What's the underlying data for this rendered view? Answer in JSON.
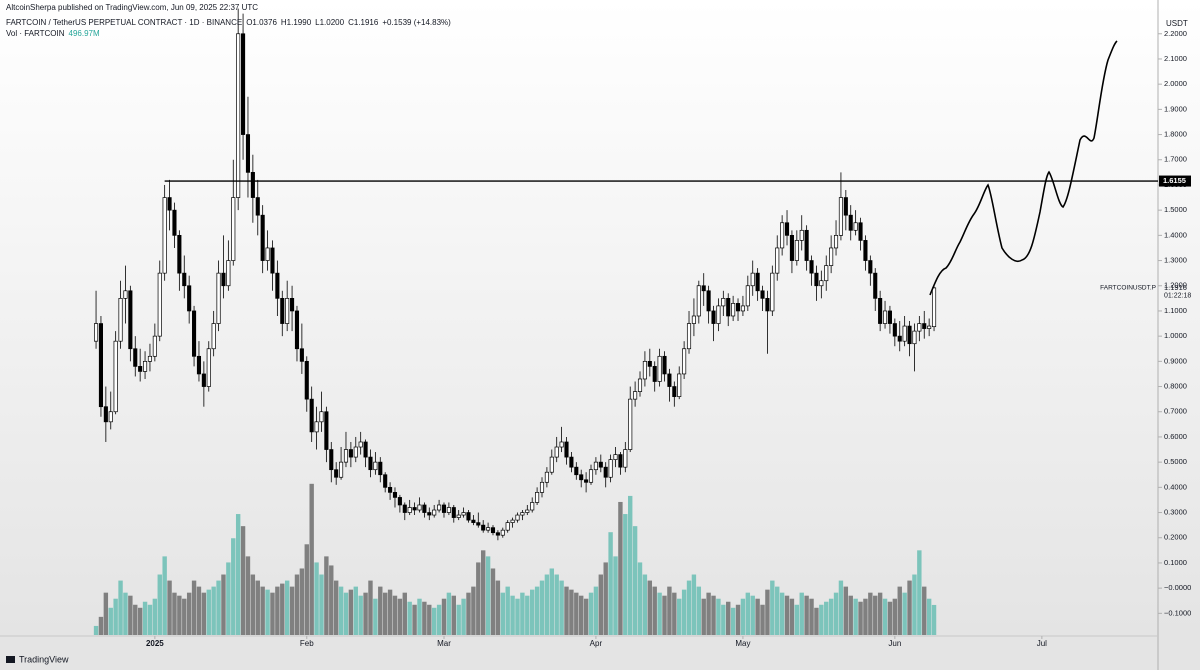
{
  "header": {
    "publisher": "AltcoinSherpa published on TradingView.com, Jun 09, 2025 22:37 UTC",
    "symbol": "FARTCOIN / TetherUS PERPETUAL CONTRACT · 1D · BINANCE",
    "ohlc": [
      "O1.0376",
      "H1.1990",
      "L1.0200",
      "C1.1916",
      "+0.1539 (+14.83%)"
    ],
    "volume_name": "Vol · FARTCOIN",
    "volume_value": "496.97M",
    "brand": "TradingView"
  },
  "chart_data": {
    "type": "candlestick",
    "currency": "USDT",
    "xlim": [
      -19.6,
      216.7
    ],
    "xticks": [
      {
        "value": 12,
        "label": "2025"
      },
      {
        "value": 43,
        "label": "Feb"
      },
      {
        "value": 71,
        "label": "Mar"
      },
      {
        "value": 102,
        "label": "Apr"
      },
      {
        "value": 132,
        "label": "May"
      },
      {
        "value": 163,
        "label": "Jun"
      },
      {
        "value": 193,
        "label": "Jul"
      }
    ],
    "ylim": [
      -0.186,
      2.334
    ],
    "yticks": [
      {
        "value": -0.1,
        "label": "−0.1000"
      },
      {
        "value": 0,
        "label": "−0.0000"
      },
      {
        "value": 0.1,
        "label": "0.1000"
      },
      {
        "value": 0.2,
        "label": "0.2000"
      },
      {
        "value": 0.3,
        "label": "0.3000"
      },
      {
        "value": 0.4,
        "label": "0.4000"
      },
      {
        "value": 0.5,
        "label": "0.5000"
      },
      {
        "value": 0.6,
        "label": "0.6000"
      },
      {
        "value": 0.7,
        "label": "0.7000"
      },
      {
        "value": 0.8,
        "label": "0.8000"
      },
      {
        "value": 0.9,
        "label": "0.9000"
      },
      {
        "value": 1.0,
        "label": "1.0000"
      },
      {
        "value": 1.1,
        "label": "1.1000"
      },
      {
        "value": 1.2,
        "label": "1.2000"
      },
      {
        "value": 1.3,
        "label": "1.3000"
      },
      {
        "value": 1.4,
        "label": "1.4000"
      },
      {
        "value": 1.5,
        "label": "1.5000"
      },
      {
        "value": 1.6,
        "label": "1.6000"
      },
      {
        "value": 1.7,
        "label": "1.7000"
      },
      {
        "value": 1.8,
        "label": "1.8000"
      },
      {
        "value": 1.9,
        "label": "1.9000"
      },
      {
        "value": 2.0,
        "label": "2.0000"
      },
      {
        "value": 2.1,
        "label": "2.1000"
      },
      {
        "value": 2.2,
        "label": "2.2000"
      }
    ],
    "volume_lim": [
      0,
      10500
    ],
    "grid": false,
    "up_color": "#ffffff",
    "down_color": "#000000",
    "vol_up_color": "#7cc4bb",
    "vol_down_color": "#808080",
    "level": {
      "value": 1.6155,
      "label": "1.6155",
      "from_index": 14
    },
    "last_price": {
      "value": 1.1916,
      "label": "1.1916",
      "ticker": "FARTCOINUSDT.P",
      "countdown": "01:22:18"
    },
    "candles": [
      [
        0.98,
        1.18,
        0.95,
        1.05,
        150
      ],
      [
        1.05,
        1.08,
        0.68,
        0.72,
        300
      ],
      [
        0.72,
        0.8,
        0.58,
        0.66,
        700
      ],
      [
        0.66,
        0.78,
        0.63,
        0.7,
        450
      ],
      [
        0.7,
        1.02,
        0.69,
        0.98,
        600
      ],
      [
        0.98,
        1.22,
        0.95,
        1.15,
        900
      ],
      [
        1.15,
        1.28,
        1.05,
        1.18,
        700
      ],
      [
        1.18,
        1.2,
        0.9,
        0.95,
        650
      ],
      [
        0.95,
        1.0,
        0.84,
        0.88,
        500
      ],
      [
        0.88,
        0.95,
        0.82,
        0.86,
        450
      ],
      [
        0.86,
        0.94,
        0.83,
        0.9,
        550
      ],
      [
        0.9,
        0.97,
        0.86,
        0.92,
        500
      ],
      [
        0.92,
        1.05,
        0.9,
        1.0,
        600
      ],
      [
        1.0,
        1.3,
        0.98,
        1.25,
        1000
      ],
      [
        1.25,
        1.6,
        1.22,
        1.55,
        1300
      ],
      [
        1.55,
        1.62,
        1.42,
        1.5,
        900
      ],
      [
        1.5,
        1.53,
        1.35,
        1.4,
        700
      ],
      [
        1.4,
        1.42,
        1.18,
        1.25,
        650
      ],
      [
        1.25,
        1.32,
        1.15,
        1.2,
        600
      ],
      [
        1.2,
        1.24,
        1.05,
        1.1,
        700
      ],
      [
        1.1,
        1.12,
        0.88,
        0.92,
        900
      ],
      [
        0.92,
        0.98,
        0.82,
        0.85,
        800
      ],
      [
        0.85,
        0.9,
        0.72,
        0.8,
        700
      ],
      [
        0.8,
        0.98,
        0.78,
        0.95,
        750
      ],
      [
        0.95,
        1.1,
        0.92,
        1.05,
        800
      ],
      [
        1.05,
        1.3,
        1.02,
        1.25,
        900
      ],
      [
        1.25,
        1.4,
        1.15,
        1.2,
        1000
      ],
      [
        1.2,
        1.38,
        1.18,
        1.3,
        1200
      ],
      [
        1.3,
        1.7,
        1.28,
        1.55,
        1600
      ],
      [
        1.55,
        2.3,
        1.5,
        2.2,
        2000
      ],
      [
        2.2,
        2.28,
        1.7,
        1.8,
        1800
      ],
      [
        1.8,
        1.95,
        1.55,
        1.65,
        1300
      ],
      [
        1.65,
        1.72,
        1.45,
        1.55,
        1000
      ],
      [
        1.55,
        1.62,
        1.4,
        1.48,
        900
      ],
      [
        1.48,
        1.52,
        1.25,
        1.3,
        800
      ],
      [
        1.3,
        1.42,
        1.26,
        1.35,
        750
      ],
      [
        1.35,
        1.38,
        1.18,
        1.25,
        700
      ],
      [
        1.25,
        1.3,
        1.08,
        1.15,
        800
      ],
      [
        1.15,
        1.18,
        1.0,
        1.05,
        850
      ],
      [
        1.05,
        1.22,
        1.02,
        1.15,
        900
      ],
      [
        1.15,
        1.2,
        1.02,
        1.1,
        800
      ],
      [
        1.1,
        1.12,
        0.9,
        0.95,
        1000
      ],
      [
        0.95,
        1.05,
        0.85,
        0.9,
        1100
      ],
      [
        0.9,
        0.92,
        0.7,
        0.75,
        1500
      ],
      [
        0.75,
        0.8,
        0.58,
        0.62,
        2500
      ],
      [
        0.62,
        0.72,
        0.55,
        0.66,
        1200
      ],
      [
        0.66,
        0.78,
        0.62,
        0.7,
        1000
      ],
      [
        0.7,
        0.72,
        0.5,
        0.55,
        1300
      ],
      [
        0.55,
        0.58,
        0.42,
        0.47,
        1150
      ],
      [
        0.47,
        0.5,
        0.41,
        0.44,
        900
      ],
      [
        0.44,
        0.56,
        0.43,
        0.5,
        800
      ],
      [
        0.5,
        0.62,
        0.48,
        0.55,
        700
      ],
      [
        0.55,
        0.58,
        0.48,
        0.52,
        750
      ],
      [
        0.52,
        0.6,
        0.5,
        0.56,
        800
      ],
      [
        0.56,
        0.62,
        0.53,
        0.58,
        650
      ],
      [
        0.58,
        0.59,
        0.48,
        0.52,
        700
      ],
      [
        0.52,
        0.55,
        0.44,
        0.47,
        900
      ],
      [
        0.47,
        0.54,
        0.45,
        0.5,
        600
      ],
      [
        0.5,
        0.52,
        0.42,
        0.45,
        800
      ],
      [
        0.45,
        0.46,
        0.38,
        0.4,
        700
      ],
      [
        0.4,
        0.42,
        0.35,
        0.38,
        750
      ],
      [
        0.38,
        0.4,
        0.32,
        0.36,
        650
      ],
      [
        0.36,
        0.37,
        0.3,
        0.33,
        600
      ],
      [
        0.33,
        0.34,
        0.27,
        0.3,
        700
      ],
      [
        0.3,
        0.35,
        0.29,
        0.32,
        550
      ],
      [
        0.32,
        0.34,
        0.29,
        0.31,
        500
      ],
      [
        0.31,
        0.36,
        0.3,
        0.33,
        600
      ],
      [
        0.33,
        0.34,
        0.28,
        0.3,
        550
      ],
      [
        0.3,
        0.32,
        0.27,
        0.29,
        500
      ],
      [
        0.29,
        0.33,
        0.28,
        0.31,
        450
      ],
      [
        0.31,
        0.35,
        0.3,
        0.33,
        500
      ],
      [
        0.33,
        0.34,
        0.28,
        0.3,
        600
      ],
      [
        0.3,
        0.34,
        0.29,
        0.32,
        700
      ],
      [
        0.32,
        0.33,
        0.26,
        0.28,
        650
      ],
      [
        0.28,
        0.31,
        0.27,
        0.29,
        500
      ],
      [
        0.29,
        0.32,
        0.28,
        0.3,
        600
      ],
      [
        0.3,
        0.31,
        0.26,
        0.27,
        700
      ],
      [
        0.27,
        0.29,
        0.25,
        0.26,
        800
      ],
      [
        0.26,
        0.3,
        0.24,
        0.25,
        1200
      ],
      [
        0.25,
        0.27,
        0.22,
        0.23,
        1400
      ],
      [
        0.23,
        0.26,
        0.22,
        0.24,
        1300
      ],
      [
        0.24,
        0.25,
        0.21,
        0.22,
        1100
      ],
      [
        0.22,
        0.23,
        0.19,
        0.21,
        900
      ],
      [
        0.21,
        0.24,
        0.2,
        0.23,
        700
      ],
      [
        0.23,
        0.27,
        0.22,
        0.26,
        800
      ],
      [
        0.26,
        0.28,
        0.24,
        0.27,
        650
      ],
      [
        0.27,
        0.3,
        0.26,
        0.29,
        600
      ],
      [
        0.29,
        0.31,
        0.27,
        0.3,
        700
      ],
      [
        0.3,
        0.33,
        0.29,
        0.31,
        650
      ],
      [
        0.31,
        0.36,
        0.3,
        0.34,
        750
      ],
      [
        0.34,
        0.4,
        0.33,
        0.38,
        800
      ],
      [
        0.38,
        0.44,
        0.36,
        0.42,
        900
      ],
      [
        0.42,
        0.48,
        0.4,
        0.46,
        1000
      ],
      [
        0.46,
        0.55,
        0.45,
        0.52,
        1100
      ],
      [
        0.52,
        0.6,
        0.5,
        0.56,
        1000
      ],
      [
        0.56,
        0.64,
        0.54,
        0.58,
        900
      ],
      [
        0.58,
        0.6,
        0.49,
        0.52,
        800
      ],
      [
        0.52,
        0.54,
        0.46,
        0.48,
        750
      ],
      [
        0.48,
        0.5,
        0.43,
        0.45,
        700
      ],
      [
        0.45,
        0.47,
        0.4,
        0.43,
        650
      ],
      [
        0.43,
        0.46,
        0.38,
        0.42,
        600
      ],
      [
        0.42,
        0.49,
        0.41,
        0.47,
        700
      ],
      [
        0.47,
        0.52,
        0.45,
        0.5,
        800
      ],
      [
        0.5,
        0.53,
        0.46,
        0.48,
        1000
      ],
      [
        0.48,
        0.5,
        0.4,
        0.44,
        1200
      ],
      [
        0.44,
        0.53,
        0.42,
        0.51,
        1700
      ],
      [
        0.51,
        0.56,
        0.48,
        0.53,
        1300
      ],
      [
        0.53,
        0.54,
        0.45,
        0.48,
        2200
      ],
      [
        0.48,
        0.58,
        0.46,
        0.55,
        2000
      ],
      [
        0.55,
        0.8,
        0.54,
        0.75,
        2300
      ],
      [
        0.75,
        0.82,
        0.72,
        0.78,
        1800
      ],
      [
        0.78,
        0.86,
        0.76,
        0.83,
        1200
      ],
      [
        0.83,
        0.94,
        0.8,
        0.9,
        1000
      ],
      [
        0.9,
        0.95,
        0.84,
        0.88,
        900
      ],
      [
        0.88,
        0.9,
        0.78,
        0.82,
        800
      ],
      [
        0.82,
        0.95,
        0.8,
        0.92,
        700
      ],
      [
        0.92,
        0.94,
        0.82,
        0.85,
        650
      ],
      [
        0.85,
        0.87,
        0.74,
        0.8,
        800
      ],
      [
        0.8,
        0.82,
        0.72,
        0.76,
        700
      ],
      [
        0.76,
        0.88,
        0.75,
        0.85,
        600
      ],
      [
        0.85,
        0.98,
        0.83,
        0.95,
        750
      ],
      [
        0.95,
        1.1,
        0.93,
        1.05,
        900
      ],
      [
        1.05,
        1.15,
        1.0,
        1.08,
        1000
      ],
      [
        1.08,
        1.22,
        1.05,
        1.2,
        800
      ],
      [
        1.2,
        1.25,
        1.12,
        1.18,
        600
      ],
      [
        1.18,
        1.2,
        1.05,
        1.1,
        700
      ],
      [
        1.1,
        1.12,
        0.98,
        1.05,
        650
      ],
      [
        1.05,
        1.15,
        1.02,
        1.12,
        600
      ],
      [
        1.12,
        1.18,
        1.08,
        1.15,
        500
      ],
      [
        1.15,
        1.17,
        1.04,
        1.08,
        550
      ],
      [
        1.08,
        1.16,
        1.06,
        1.13,
        450
      ],
      [
        1.13,
        1.15,
        1.06,
        1.1,
        500
      ],
      [
        1.1,
        1.16,
        1.08,
        1.12,
        600
      ],
      [
        1.12,
        1.24,
        1.1,
        1.2,
        700
      ],
      [
        1.2,
        1.3,
        1.16,
        1.25,
        650
      ],
      [
        1.25,
        1.27,
        1.14,
        1.18,
        600
      ],
      [
        1.18,
        1.2,
        1.1,
        1.15,
        500
      ],
      [
        1.15,
        1.18,
        0.93,
        1.1,
        750
      ],
      [
        1.1,
        1.28,
        1.08,
        1.25,
        900
      ],
      [
        1.25,
        1.4,
        1.22,
        1.35,
        800
      ],
      [
        1.35,
        1.48,
        1.32,
        1.45,
        700
      ],
      [
        1.45,
        1.5,
        1.36,
        1.4,
        650
      ],
      [
        1.4,
        1.42,
        1.25,
        1.3,
        600
      ],
      [
        1.3,
        1.42,
        1.28,
        1.38,
        500
      ],
      [
        1.38,
        1.48,
        1.34,
        1.42,
        700
      ],
      [
        1.42,
        1.44,
        1.26,
        1.3,
        650
      ],
      [
        1.3,
        1.32,
        1.2,
        1.25,
        600
      ],
      [
        1.25,
        1.28,
        1.14,
        1.2,
        450
      ],
      [
        1.2,
        1.26,
        1.15,
        1.22,
        500
      ],
      [
        1.22,
        1.32,
        1.18,
        1.28,
        550
      ],
      [
        1.28,
        1.4,
        1.25,
        1.35,
        600
      ],
      [
        1.35,
        1.46,
        1.32,
        1.4,
        700
      ],
      [
        1.4,
        1.65,
        1.38,
        1.55,
        900
      ],
      [
        1.55,
        1.58,
        1.42,
        1.48,
        800
      ],
      [
        1.48,
        1.52,
        1.38,
        1.42,
        650
      ],
      [
        1.42,
        1.5,
        1.4,
        1.45,
        600
      ],
      [
        1.45,
        1.47,
        1.34,
        1.38,
        550
      ],
      [
        1.38,
        1.4,
        1.26,
        1.3,
        600
      ],
      [
        1.3,
        1.32,
        1.2,
        1.25,
        700
      ],
      [
        1.25,
        1.27,
        1.1,
        1.15,
        650
      ],
      [
        1.15,
        1.18,
        1.02,
        1.05,
        700
      ],
      [
        1.05,
        1.14,
        1.03,
        1.1,
        600
      ],
      [
        1.1,
        1.12,
        1.01,
        1.05,
        550
      ],
      [
        1.05,
        1.07,
        0.96,
        1.0,
        600
      ],
      [
        1.0,
        1.06,
        0.94,
        0.98,
        800
      ],
      [
        0.98,
        1.08,
        0.96,
        1.04,
        700
      ],
      [
        1.04,
        1.06,
        0.92,
        0.97,
        900
      ],
      [
        0.97,
        1.05,
        0.86,
        1.02,
        1000
      ],
      [
        1.02,
        1.08,
        0.98,
        1.05,
        1400
      ],
      [
        1.05,
        1.1,
        0.99,
        1.03,
        800
      ],
      [
        1.03,
        1.07,
        1.0,
        1.04,
        600
      ],
      [
        1.0376,
        1.199,
        1.02,
        1.1916,
        496.97
      ]
    ]
  }
}
